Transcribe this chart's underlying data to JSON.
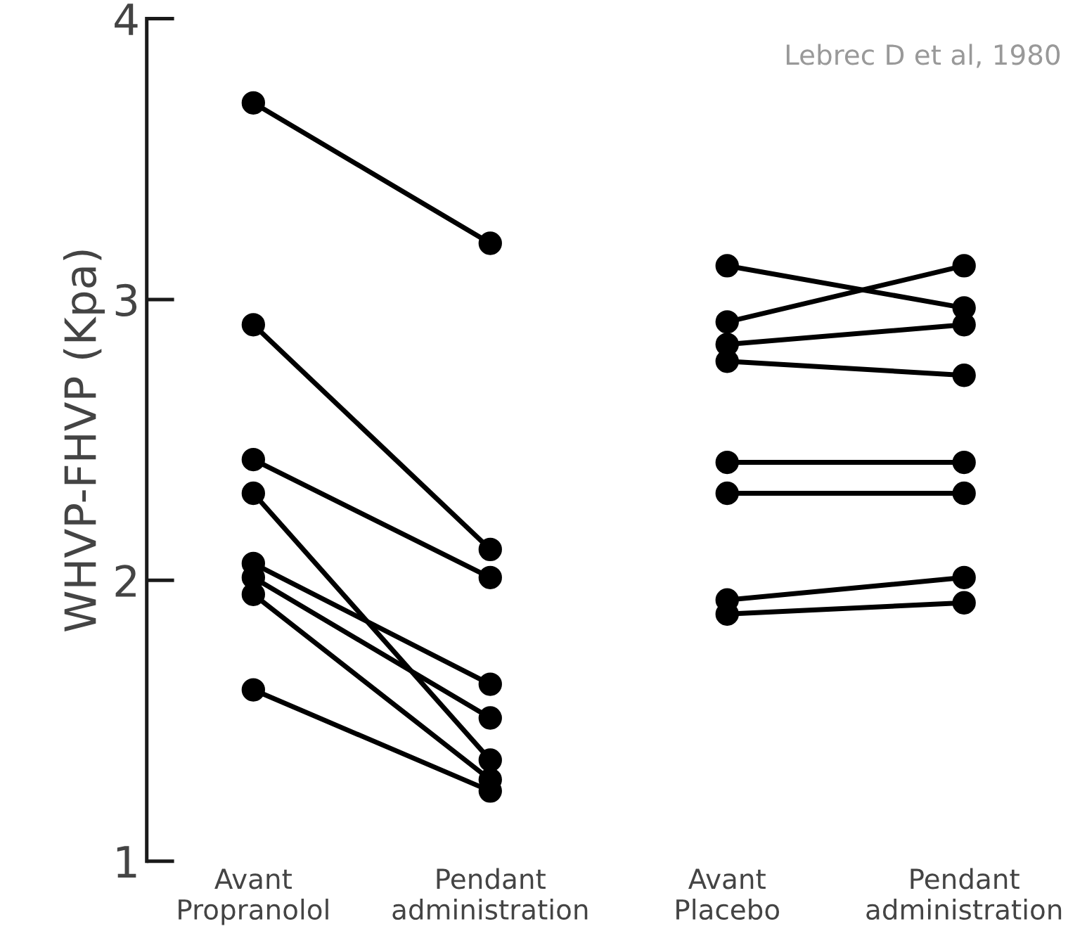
{
  "chart_data": {
    "type": "line",
    "ylabel": "WHVP-FHVP (Kpa)",
    "annotations": [
      "Lebrec D et al, 1980"
    ],
    "categories": [
      "Avant\nPropranolol",
      "Pendant\nadministration",
      "Avant\nPlacebo",
      "Pendant\nadministration"
    ],
    "ylim": [
      1,
      4
    ],
    "yticks": [
      1,
      2,
      3,
      4
    ],
    "grid": false,
    "legend": false,
    "marker": "circle",
    "line_style": "solid",
    "series": [
      {
        "color": "#000000",
        "values": [
          3.7,
          3.2,
          null,
          null
        ]
      },
      {
        "color": "#000000",
        "values": [
          2.91,
          2.11,
          null,
          null
        ]
      },
      {
        "color": "#000000",
        "values": [
          2.43,
          2.01,
          null,
          null
        ]
      },
      {
        "color": "#000000",
        "values": [
          2.31,
          1.36,
          null,
          null
        ]
      },
      {
        "color": "#000000",
        "values": [
          2.06,
          1.63,
          null,
          null
        ]
      },
      {
        "color": "#000000",
        "values": [
          2.01,
          1.51,
          null,
          null
        ]
      },
      {
        "color": "#000000",
        "values": [
          1.95,
          1.29,
          null,
          null
        ]
      },
      {
        "color": "#000000",
        "values": [
          1.61,
          1.25,
          null,
          null
        ]
      },
      {
        "color": "#000000",
        "values": [
          null,
          null,
          3.12,
          2.97
        ]
      },
      {
        "color": "#000000",
        "values": [
          null,
          null,
          2.92,
          3.12
        ]
      },
      {
        "color": "#000000",
        "values": [
          null,
          null,
          2.84,
          2.91
        ]
      },
      {
        "color": "#000000",
        "values": [
          null,
          null,
          2.78,
          2.73
        ]
      },
      {
        "color": "#000000",
        "values": [
          null,
          null,
          2.42,
          2.42
        ]
      },
      {
        "color": "#000000",
        "values": [
          null,
          null,
          2.31,
          2.31
        ]
      },
      {
        "color": "#000000",
        "values": [
          null,
          null,
          1.93,
          2.01
        ]
      },
      {
        "color": "#000000",
        "values": [
          null,
          null,
          1.88,
          1.92
        ]
      }
    ]
  }
}
